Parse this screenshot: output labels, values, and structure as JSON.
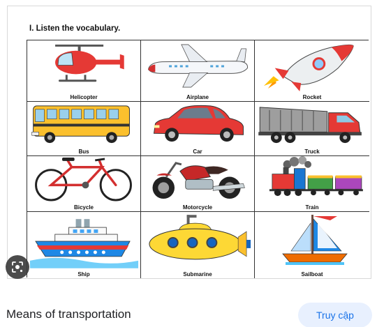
{
  "worksheet": {
    "title": "I. Listen the vocabulary.",
    "items": [
      {
        "label": "Helicopter",
        "icon": "helicopter-icon"
      },
      {
        "label": "Airplane",
        "icon": "airplane-icon"
      },
      {
        "label": "Rocket",
        "icon": "rocket-icon"
      },
      {
        "label": "Bus",
        "icon": "bus-icon"
      },
      {
        "label": "Car",
        "icon": "car-icon"
      },
      {
        "label": "Truck",
        "icon": "truck-icon"
      },
      {
        "label": "Bicycle",
        "icon": "bicycle-icon"
      },
      {
        "label": "Motorcycle",
        "icon": "motorcycle-icon"
      },
      {
        "label": "Train",
        "icon": "train-icon"
      },
      {
        "label": "Ship",
        "icon": "ship-icon"
      },
      {
        "label": "Submarine",
        "icon": "submarine-icon"
      },
      {
        "label": "Sailboat",
        "icon": "sailboat-icon"
      }
    ]
  },
  "result": {
    "title": "Means of transportation",
    "visit_label": "Truy cập"
  },
  "colors": {
    "accent": "#1a73e8",
    "visit_bg": "#e8f0fe",
    "lens_bg": "#3c3c3c"
  }
}
